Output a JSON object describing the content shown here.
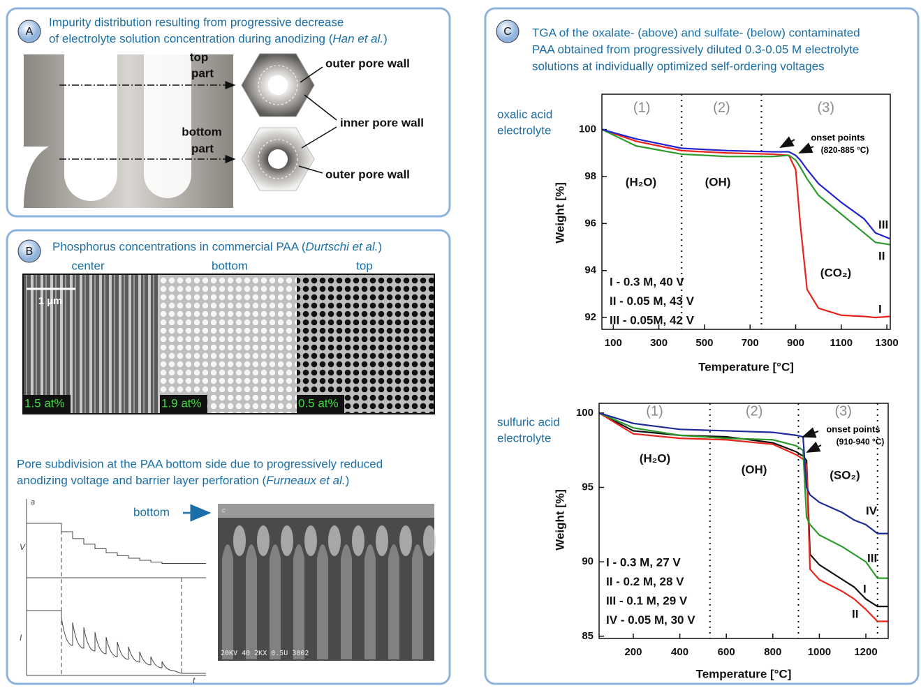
{
  "panels": {
    "a": {
      "letter": "A",
      "title": [
        [
          "Impurity distribution resulting from progressive decrease"
        ],
        [
          "of electrolyte solution concentration during anodizing (",
          "Han et al.",
          ")"
        ]
      ],
      "labels": {
        "top_part": [
          "top",
          "part"
        ],
        "bottom_part": [
          "bottom",
          "part"
        ],
        "outer_top": "outer pore wall",
        "inner": "inner pore wall",
        "outer_bottom": "outer pore wall"
      }
    },
    "b": {
      "letter": "B",
      "title": [
        "Phosphorus concentrations in commercial PAA (",
        "Durtschi et al.",
        ")"
      ],
      "images": [
        {
          "caption": "center",
          "content": "1.5 at%"
        },
        {
          "caption": "bottom",
          "content": "1.9 at%"
        },
        {
          "caption": "top",
          "content": "0.5 at%"
        }
      ],
      "scale_bar": "1 µm",
      "subtitle": [
        [
          "Pore subdivision at the PAA bottom side due to progressively reduced"
        ],
        [
          "anodizing voltage and barrier layer perforation (",
          "Furneaux et al.",
          ")"
        ]
      ],
      "sketch": {
        "panel": "a",
        "y_top": "V",
        "y_bottom": "I",
        "x": "t"
      },
      "sem": {
        "panel": "c",
        "info": "20KV   40  2KX   0.5U   3002"
      },
      "arrow_label": "bottom"
    },
    "c": {
      "letter": "C",
      "title": [
        "TGA of the oxalate- (above) and sulfate- (below) contaminated",
        "PAA obtained from progressively diluted 0.3-0.05 M electrolyte",
        "solutions at individually optimized self-ordering voltages"
      ],
      "charts": [
        {
          "type": "line",
          "row_label": [
            "oxalic acid",
            "electrolyte"
          ],
          "x_label": "Temperature [°C]",
          "y_label": "Weight [%]",
          "xlim": [
            50,
            1315
          ],
          "ylim": [
            91.5,
            101.5
          ],
          "xticks": [
            100,
            300,
            500,
            700,
            900,
            1100,
            1300
          ],
          "yticks": [
            92,
            94,
            96,
            98,
            100
          ],
          "dividers": [
            400,
            750
          ],
          "regions": [
            "(1)",
            "(2)",
            "(3)"
          ],
          "species": [
            "(H₂O)",
            "(OH)",
            "(CO₂)"
          ],
          "annotation": [
            "onset points",
            "(820-885 °C)"
          ],
          "x": [
            50,
            200,
            400,
            600,
            800,
            870,
            900,
            920,
            950,
            1000,
            1100,
            1200,
            1250,
            1315
          ],
          "series": [
            {
              "name": "I - 0.3 M, 40 V",
              "label": "I",
              "color": "#e8241c",
              "values": [
                100,
                99.5,
                99.1,
                99.0,
                98.95,
                98.9,
                98.3,
                96,
                93.2,
                92.4,
                92.1,
                92.05,
                92.0,
                92.05
              ]
            },
            {
              "name": "II - 0.05 M, 43 V",
              "label": "II",
              "color": "#2e9a2e",
              "values": [
                100,
                99.3,
                98.95,
                98.85,
                98.85,
                98.9,
                98.7,
                98.4,
                97.9,
                97.2,
                96.4,
                95.6,
                95.2,
                95.1
              ]
            },
            {
              "name": "III - 0.05M, 42 V",
              "label": "III",
              "color": "#2323d0",
              "values": [
                100,
                99.6,
                99.2,
                99.1,
                99.05,
                99.05,
                98.9,
                98.7,
                98.3,
                97.7,
                96.9,
                96.2,
                95.6,
                95.35
              ]
            }
          ]
        },
        {
          "type": "line",
          "row_label": [
            "sulfuric acid",
            "electrolyte"
          ],
          "x_label": "Temperature [°C]",
          "y_label": "Weight [%]",
          "xlim": [
            53,
            1296
          ],
          "ylim": [
            84.85,
            100.65
          ],
          "xticks": [
            200,
            400,
            600,
            800,
            1000,
            1200
          ],
          "yticks": [
            85,
            90,
            95,
            100
          ],
          "dividers": [
            530,
            910,
            1250
          ],
          "regions": [
            "(1)",
            "(2)",
            "(3)"
          ],
          "species": [
            "(H₂O)",
            "(OH)",
            "(SO₂)"
          ],
          "annotation": [
            "onset points",
            "(910-940 °C)"
          ],
          "x": [
            53,
            200,
            400,
            600,
            800,
            900,
            930,
            945,
            960,
            1000,
            1100,
            1150,
            1200,
            1250,
            1296
          ],
          "series": [
            {
              "name": "I - 0.3 M, 27 V",
              "label": "I",
              "color": "#111111",
              "values": [
                100,
                98.8,
                98.5,
                98.4,
                98,
                97.4,
                97.1,
                96.8,
                90.5,
                89.8,
                88.8,
                88.3,
                87.5,
                87,
                87
              ]
            },
            {
              "name": "II - 0.2 M, 28 V",
              "label": "II",
              "color": "#e8241c",
              "values": [
                100,
                98.6,
                98.3,
                98.2,
                97.9,
                97.2,
                96.9,
                96.5,
                89.5,
                88.8,
                88,
                87.5,
                86.8,
                86,
                86
              ]
            },
            {
              "name": "III - 0.1 M, 29 V",
              "label": "III",
              "color": "#2e9a2e",
              "values": [
                100,
                99,
                98.5,
                98.3,
                98.2,
                97.8,
                97.5,
                93,
                92.5,
                91.8,
                91,
                90.5,
                90,
                88.9,
                88.9
              ]
            },
            {
              "name": "IV - 0.05 M, 30 V",
              "label": "IV",
              "color": "#1f2a9a",
              "values": [
                100,
                99.3,
                98.9,
                98.8,
                98.7,
                98.5,
                98.4,
                95,
                94.5,
                94,
                93.3,
                92.8,
                92.5,
                91.9,
                91.9
              ]
            }
          ]
        }
      ]
    }
  }
}
